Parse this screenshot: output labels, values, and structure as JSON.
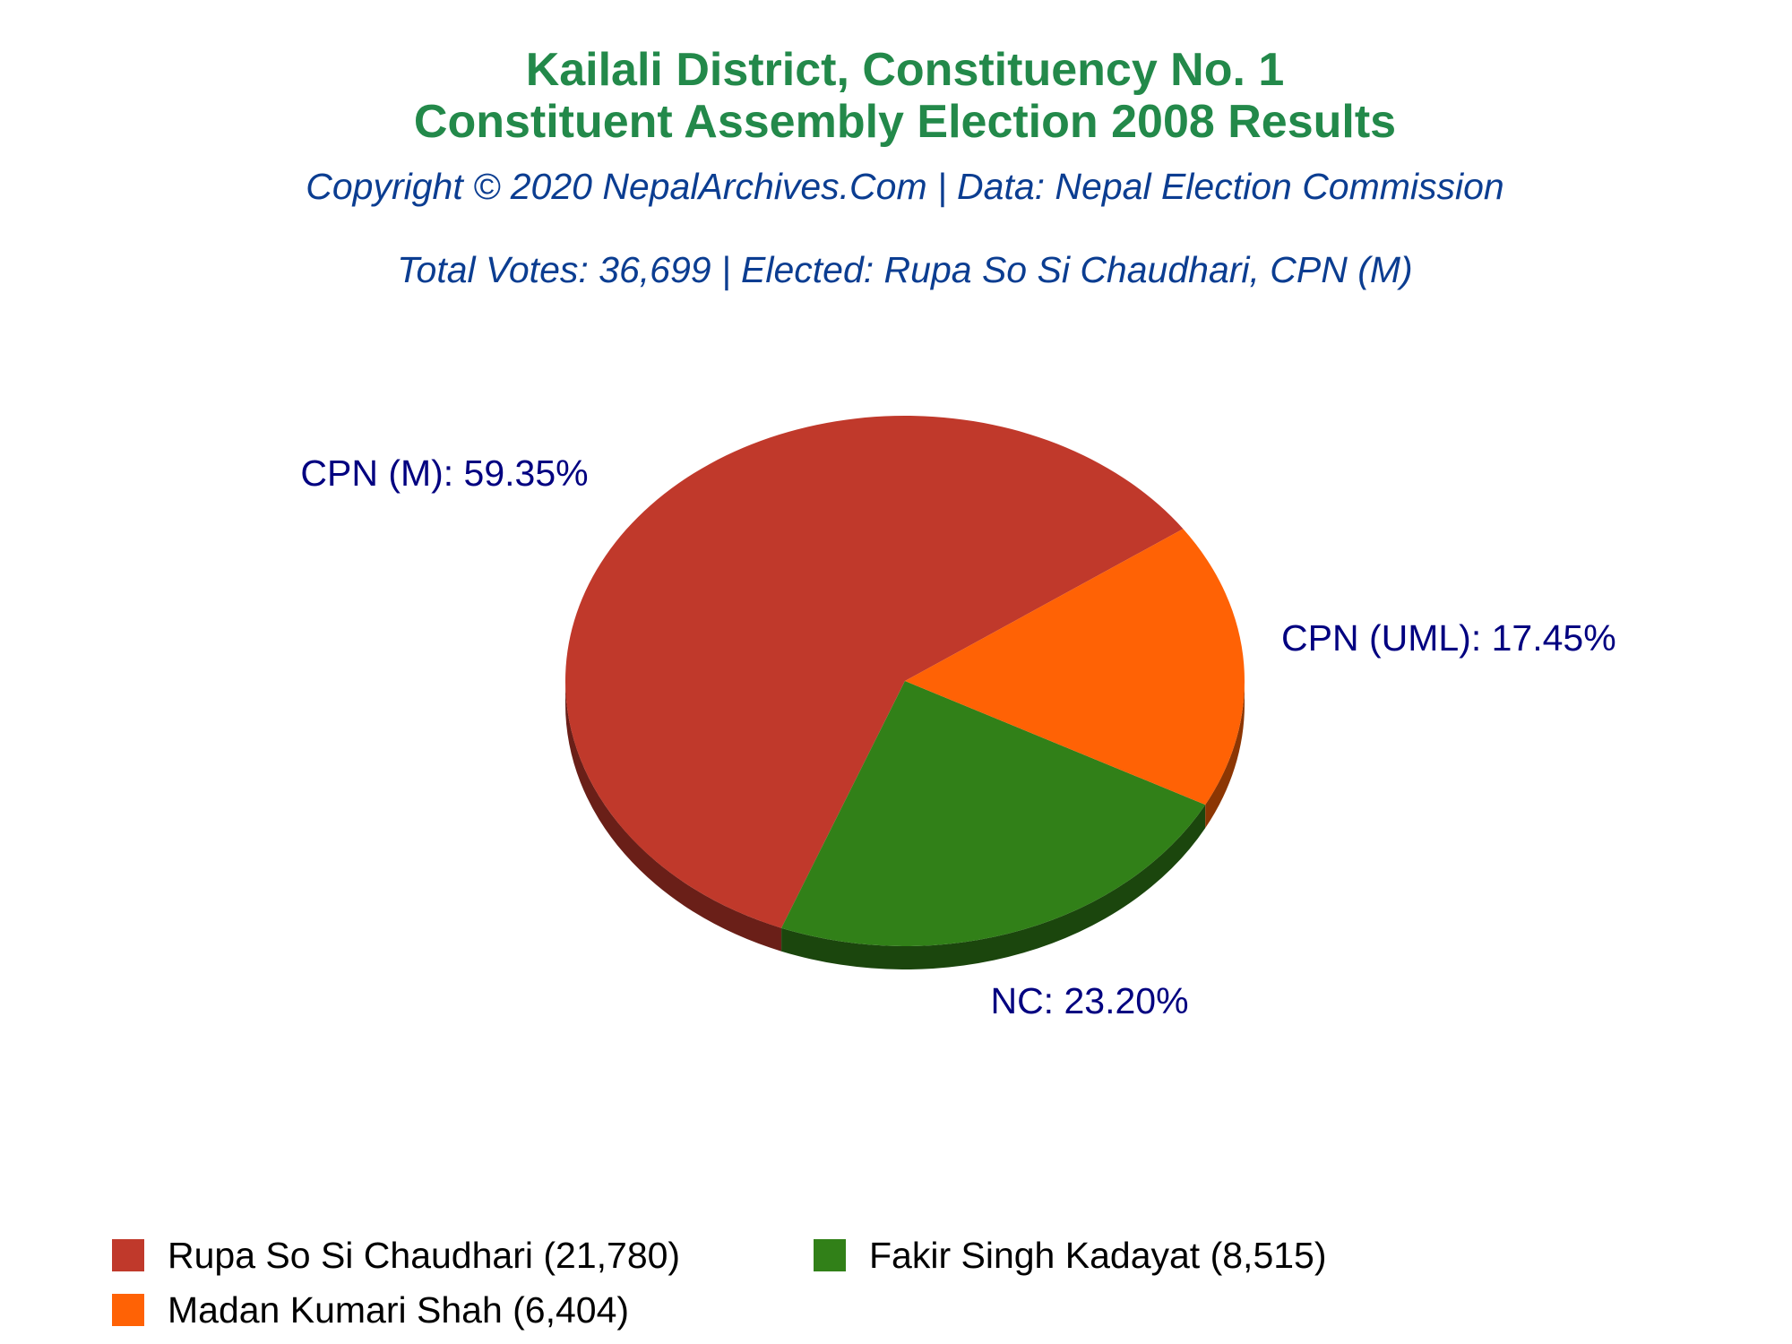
{
  "chart_data": {
    "type": "pie",
    "title": [
      "Kailali District, Constituency No. 1",
      "Constituent Assembly Election 2008 Results"
    ],
    "subtitle": "Copyright © 2020 NepalArchives.Com | Data: Nepal Election Commission",
    "annotation": "Total Votes: 36,699 | Elected: Rupa So Si Chaudhari, CPN (M)",
    "categories": [
      "CPN (M)",
      "NC",
      "CPN (UML)"
    ],
    "values": [
      59.35,
      23.2,
      17.45
    ],
    "value_labels": [
      "CPN (M): 59.35%",
      "NC: 23.20%",
      "CPN (UML): 17.45%"
    ],
    "colors": [
      "#c0392b",
      "#318018",
      "#ff6205"
    ],
    "legend": [
      "Rupa So Si Chaudhari (21,780)",
      "Fakir Singh Kadayat (8,515)",
      "Madan Kumari Shah (6,404)"
    ]
  }
}
